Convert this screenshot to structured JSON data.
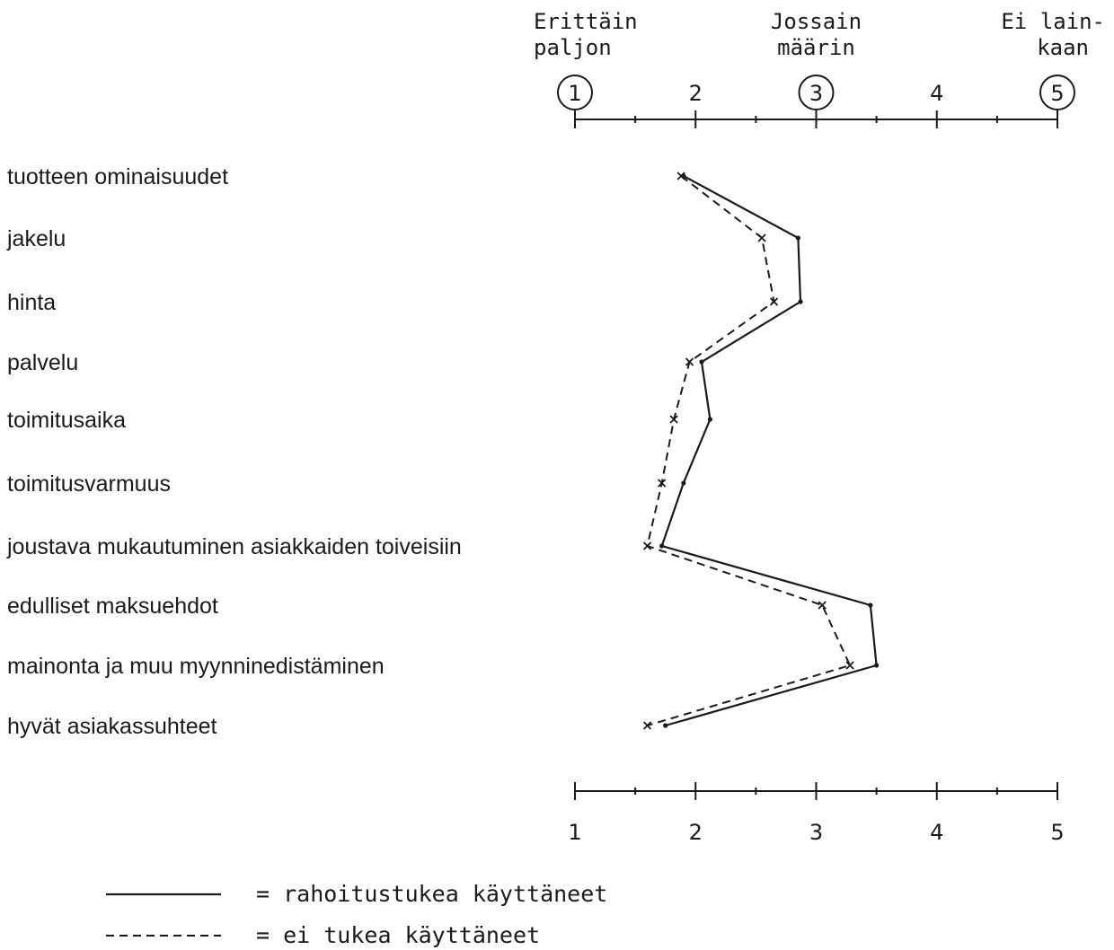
{
  "chart_data": {
    "type": "line",
    "orientation": "horizontal-values-vertical-categories",
    "top_scale_labels": [
      {
        "value": 1,
        "line1": "Erittäin",
        "line2": "paljon"
      },
      {
        "value": 3,
        "line1": "Jossain",
        "line2": "määrin"
      },
      {
        "value": 5,
        "line1": "Ei lain-",
        "line2": "kaan"
      }
    ],
    "top_tick_labels": [
      "1",
      "2",
      "3",
      "4",
      "5"
    ],
    "circled_ticks": [
      1,
      3,
      5
    ],
    "bottom_tick_labels": [
      "1",
      "2",
      "3",
      "4",
      "5"
    ],
    "xlim": [
      1,
      5
    ],
    "categories": [
      "tuotteen ominaisuudet",
      "jakelu",
      "hinta",
      "palvelu",
      "toimitusaika",
      "toimitusvarmuus",
      "joustava mukautuminen asiakkaiden toiveisiin",
      "edulliset maksuehdot",
      "mainonta ja muu myynninedistäminen",
      "hyvät asiakassuhteet"
    ],
    "series": [
      {
        "name": "= rahoitustukea käyttäneet",
        "style": "solid",
        "values": [
          1.9,
          2.85,
          2.87,
          2.05,
          2.12,
          1.9,
          1.72,
          3.45,
          3.5,
          1.75
        ]
      },
      {
        "name": "= ei tukea käyttäneet",
        "style": "dashed",
        "values": [
          1.88,
          2.55,
          2.65,
          1.95,
          1.82,
          1.72,
          1.6,
          3.05,
          3.28,
          1.6
        ]
      }
    ],
    "legend_position": "bottom-left",
    "grid": false
  }
}
